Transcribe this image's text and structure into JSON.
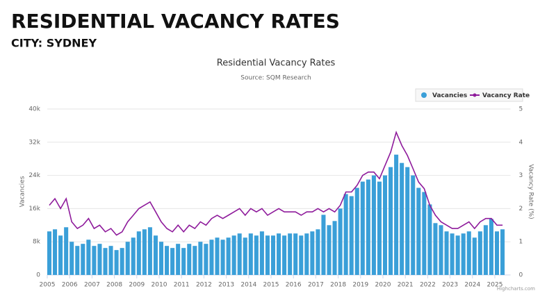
{
  "header": {
    "title": "RESIDENTIAL VACANCY RATES",
    "subtitle": "CITY: SYDNEY"
  },
  "chart_data": {
    "type": "bar-line",
    "title": "Residential Vacancy Rates",
    "subtitle": "Source: SQM Research",
    "y_label": "Vacancies",
    "y2_label": "Vacancy Rate (%)",
    "credit": "Highcharts.com",
    "x": [
      2005,
      2005.25,
      2005.5,
      2005.75,
      2006,
      2006.25,
      2006.5,
      2006.75,
      2007,
      2007.25,
      2007.5,
      2007.75,
      2008,
      2008.25,
      2008.5,
      2008.75,
      2009,
      2009.25,
      2009.5,
      2009.75,
      2010,
      2010.25,
      2010.5,
      2010.75,
      2011,
      2011.25,
      2011.5,
      2011.75,
      2012,
      2012.25,
      2012.5,
      2012.75,
      2013,
      2013.25,
      2013.5,
      2013.75,
      2014,
      2014.25,
      2014.5,
      2014.75,
      2015,
      2015.25,
      2015.5,
      2015.75,
      2016,
      2016.25,
      2016.5,
      2016.75,
      2017,
      2017.25,
      2017.5,
      2017.75,
      2018,
      2018.25,
      2018.5,
      2018.75,
      2019,
      2019.25,
      2019.5,
      2019.75,
      2020,
      2020.25,
      2020.5,
      2020.75,
      2021,
      2021.25,
      2021.5,
      2021.75,
      2022,
      2022.25,
      2022.5,
      2022.75,
      2023,
      2023.25,
      2023.5,
      2023.75,
      2024,
      2024.25,
      2024.5,
      2024.75,
      2025,
      2025.25
    ],
    "xlim": [
      2005,
      2025.7
    ],
    "xticks": [
      2005,
      2006,
      2007,
      2008,
      2009,
      2010,
      2011,
      2012,
      2013,
      2014,
      2015,
      2016,
      2017,
      2018,
      2019,
      2020,
      2021,
      2022,
      2023,
      2024,
      2025
    ],
    "ylim": [
      0,
      40000
    ],
    "yticks": [
      0,
      {
        "value": 8000,
        "label": "8k"
      },
      {
        "value": 16000,
        "label": "16k"
      },
      {
        "value": 24000,
        "label": "24k"
      },
      {
        "value": 32000,
        "label": "32k"
      },
      {
        "value": 40000,
        "label": "40k"
      }
    ],
    "y2lim": [
      0,
      5
    ],
    "y2ticks": [
      0,
      1,
      2,
      3,
      4,
      5
    ],
    "grid": true,
    "legend": "top-right",
    "series": [
      {
        "name": "Vacancies",
        "color": "#3a9fd8",
        "type": "bar",
        "values": [
          10500,
          11000,
          9500,
          11500,
          8000,
          7000,
          7500,
          8500,
          7000,
          7500,
          6500,
          7000,
          6000,
          6500,
          8000,
          9000,
          10500,
          11000,
          11500,
          9500,
          8000,
          7000,
          6500,
          7500,
          6500,
          7500,
          7000,
          8000,
          7500,
          8500,
          9000,
          8500,
          9000,
          9500,
          10000,
          9000,
          10000,
          9500,
          10500,
          9500,
          9500,
          10000,
          9500,
          10000,
          10000,
          9500,
          10000,
          10500,
          11000,
          14500,
          12000,
          13000,
          16000,
          19500,
          19000,
          21000,
          22500,
          23000,
          24000,
          22500,
          24000,
          26000,
          29000,
          27000,
          26000,
          24000,
          21000,
          20000,
          17000,
          12500,
          12000,
          10500,
          10000,
          9500,
          10000,
          10500,
          9000,
          10500,
          12000,
          13500,
          10500,
          11000
        ]
      },
      {
        "name": "Vacancy Rate",
        "color": "#8e1a9b",
        "type": "line",
        "axis": "y2",
        "values": [
          2.1,
          2.3,
          2.0,
          2.3,
          1.6,
          1.4,
          1.5,
          1.7,
          1.4,
          1.5,
          1.3,
          1.4,
          1.2,
          1.3,
          1.6,
          1.8,
          2.0,
          2.1,
          2.2,
          1.9,
          1.6,
          1.4,
          1.3,
          1.5,
          1.3,
          1.5,
          1.4,
          1.6,
          1.5,
          1.7,
          1.8,
          1.7,
          1.8,
          1.9,
          2.0,
          1.8,
          2.0,
          1.9,
          2.0,
          1.8,
          1.9,
          2.0,
          1.9,
          1.9,
          1.9,
          1.8,
          1.9,
          1.9,
          2.0,
          1.9,
          2.0,
          1.9,
          2.1,
          2.5,
          2.5,
          2.7,
          3.0,
          3.1,
          3.1,
          2.9,
          3.3,
          3.7,
          4.3,
          3.9,
          3.6,
          3.2,
          2.8,
          2.6,
          2.1,
          1.8,
          1.6,
          1.5,
          1.4,
          1.4,
          1.5,
          1.6,
          1.4,
          1.6,
          1.7,
          1.7,
          1.5,
          1.5
        ]
      }
    ]
  }
}
